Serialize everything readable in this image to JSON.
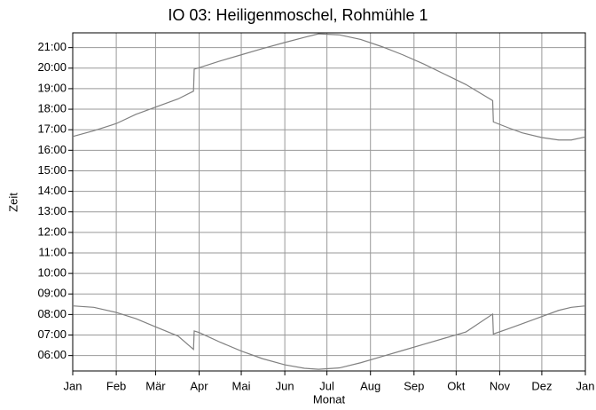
{
  "chart_data": {
    "type": "line",
    "title": "IO 03: Heiligenmoschel, Rohmühle 1",
    "xlabel": "Monat",
    "ylabel": "Zeit",
    "x": [
      0,
      15,
      31,
      45,
      59,
      75,
      86,
      86.5,
      90,
      105,
      120,
      135,
      151,
      165,
      175,
      190,
      205,
      220,
      235,
      250,
      265,
      280,
      299,
      299.5,
      310,
      320,
      334,
      346,
      355,
      365
    ],
    "series": [
      {
        "color": "#808080",
        "values": [
          16.67,
          16.95,
          17.3,
          17.75,
          18.1,
          18.5,
          18.88,
          19.95,
          20.02,
          20.35,
          20.65,
          20.95,
          21.25,
          21.5,
          21.67,
          21.62,
          21.4,
          21.05,
          20.65,
          20.2,
          19.7,
          19.2,
          18.42,
          17.38,
          17.1,
          16.85,
          16.62,
          16.5,
          16.5,
          16.65
        ]
      },
      {
        "color": "#808080",
        "values": [
          8.42,
          8.35,
          8.1,
          7.8,
          7.4,
          6.95,
          6.3,
          7.2,
          7.12,
          6.65,
          6.22,
          5.85,
          5.55,
          5.38,
          5.33,
          5.4,
          5.65,
          5.95,
          6.25,
          6.55,
          6.85,
          7.15,
          8.02,
          7.05,
          7.3,
          7.55,
          7.9,
          8.2,
          8.35,
          8.42
        ]
      }
    ],
    "xlim": [
      0,
      365
    ],
    "xticks": [
      {
        "value": 0,
        "label": "Jan"
      },
      {
        "value": 31,
        "label": "Feb"
      },
      {
        "value": 59,
        "label": "Mär"
      },
      {
        "value": 90,
        "label": "Apr"
      },
      {
        "value": 120,
        "label": "Mai"
      },
      {
        "value": 151,
        "label": "Jun"
      },
      {
        "value": 181,
        "label": "Jul"
      },
      {
        "value": 212,
        "label": "Aug"
      },
      {
        "value": 243,
        "label": "Sep"
      },
      {
        "value": 273,
        "label": "Okt"
      },
      {
        "value": 304,
        "label": "Nov"
      },
      {
        "value": 334,
        "label": "Dez"
      },
      {
        "value": 365,
        "label": "Jan"
      }
    ],
    "ylim": [
      5.25,
      21.72
    ],
    "yticks": [
      {
        "value": 6,
        "label": "06:00"
      },
      {
        "value": 7,
        "label": "07:00"
      },
      {
        "value": 8,
        "label": "08:00"
      },
      {
        "value": 9,
        "label": "09:00"
      },
      {
        "value": 10,
        "label": "10:00"
      },
      {
        "value": 11,
        "label": "11:00"
      },
      {
        "value": 12,
        "label": "12:00"
      },
      {
        "value": 13,
        "label": "13:00"
      },
      {
        "value": 14,
        "label": "14:00"
      },
      {
        "value": 15,
        "label": "15:00"
      },
      {
        "value": 16,
        "label": "16:00"
      },
      {
        "value": 17,
        "label": "17:00"
      },
      {
        "value": 18,
        "label": "18:00"
      },
      {
        "value": 19,
        "label": "19:00"
      },
      {
        "value": 20,
        "label": "20:00"
      },
      {
        "value": 21,
        "label": "21:00"
      }
    ],
    "grid": true
  }
}
